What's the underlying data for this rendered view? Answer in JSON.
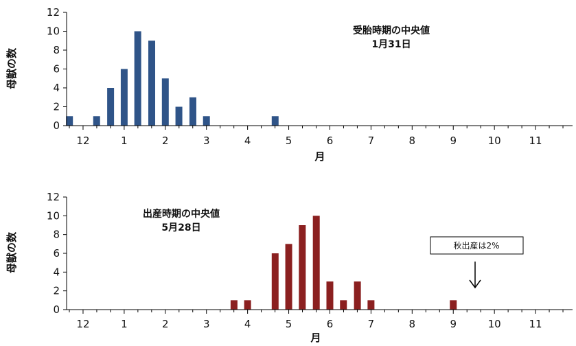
{
  "chart_data": [
    {
      "type": "bar",
      "ylabel": "母獣の数",
      "xlabel": "月",
      "ylim": [
        0,
        12
      ],
      "yticks": [
        0,
        2,
        4,
        6,
        8,
        10,
        12
      ],
      "xlim": [
        11.6,
        23.9
      ],
      "month_ticks": [
        {
          "label": "12",
          "x": 12
        },
        {
          "label": "1",
          "x": 13
        },
        {
          "label": "2",
          "x": 14
        },
        {
          "label": "3",
          "x": 15
        },
        {
          "label": "4",
          "x": 16
        },
        {
          "label": "5",
          "x": 17
        },
        {
          "label": "6",
          "x": 18
        },
        {
          "label": "7",
          "x": 19
        },
        {
          "label": "8",
          "x": 20
        },
        {
          "label": "9",
          "x": 21
        },
        {
          "label": "10",
          "x": 22
        },
        {
          "label": "11",
          "x": 23
        }
      ],
      "bar_color": "#2f5488",
      "points": [
        {
          "x": 11.67,
          "y": 1
        },
        {
          "x": 12.33,
          "y": 1
        },
        {
          "x": 12.67,
          "y": 4
        },
        {
          "x": 13.0,
          "y": 6
        },
        {
          "x": 13.33,
          "y": 10
        },
        {
          "x": 13.67,
          "y": 9
        },
        {
          "x": 14.0,
          "y": 5
        },
        {
          "x": 14.33,
          "y": 2
        },
        {
          "x": 14.67,
          "y": 3
        },
        {
          "x": 15.0,
          "y": 1
        },
        {
          "x": 16.67,
          "y": 1
        }
      ],
      "annotation": {
        "line1": "受胎時期の中央値",
        "line2": "1月31日"
      }
    },
    {
      "type": "bar",
      "ylabel": "母獣の数",
      "xlabel": "月",
      "ylim": [
        0,
        12
      ],
      "yticks": [
        0,
        2,
        4,
        6,
        8,
        10,
        12
      ],
      "xlim": [
        11.6,
        23.9
      ],
      "month_ticks": [
        {
          "label": "12",
          "x": 12
        },
        {
          "label": "1",
          "x": 13
        },
        {
          "label": "2",
          "x": 14
        },
        {
          "label": "3",
          "x": 15
        },
        {
          "label": "4",
          "x": 16
        },
        {
          "label": "5",
          "x": 17
        },
        {
          "label": "6",
          "x": 18
        },
        {
          "label": "7",
          "x": 19
        },
        {
          "label": "8",
          "x": 20
        },
        {
          "label": "9",
          "x": 21
        },
        {
          "label": "10",
          "x": 22
        },
        {
          "label": "11",
          "x": 23
        }
      ],
      "bar_color": "#8b2020",
      "points": [
        {
          "x": 15.67,
          "y": 1
        },
        {
          "x": 16.0,
          "y": 1
        },
        {
          "x": 16.67,
          "y": 6
        },
        {
          "x": 17.0,
          "y": 7
        },
        {
          "x": 17.33,
          "y": 9
        },
        {
          "x": 17.67,
          "y": 10
        },
        {
          "x": 18.0,
          "y": 3
        },
        {
          "x": 18.33,
          "y": 1
        },
        {
          "x": 18.67,
          "y": 3
        },
        {
          "x": 19.0,
          "y": 1
        },
        {
          "x": 21.0,
          "y": 1
        }
      ],
      "annotation": {
        "line1": "出産時期の中央値",
        "line2": "5月28日"
      },
      "callout": {
        "text": "秋出産は2%",
        "target_x": 21.0
      }
    }
  ]
}
